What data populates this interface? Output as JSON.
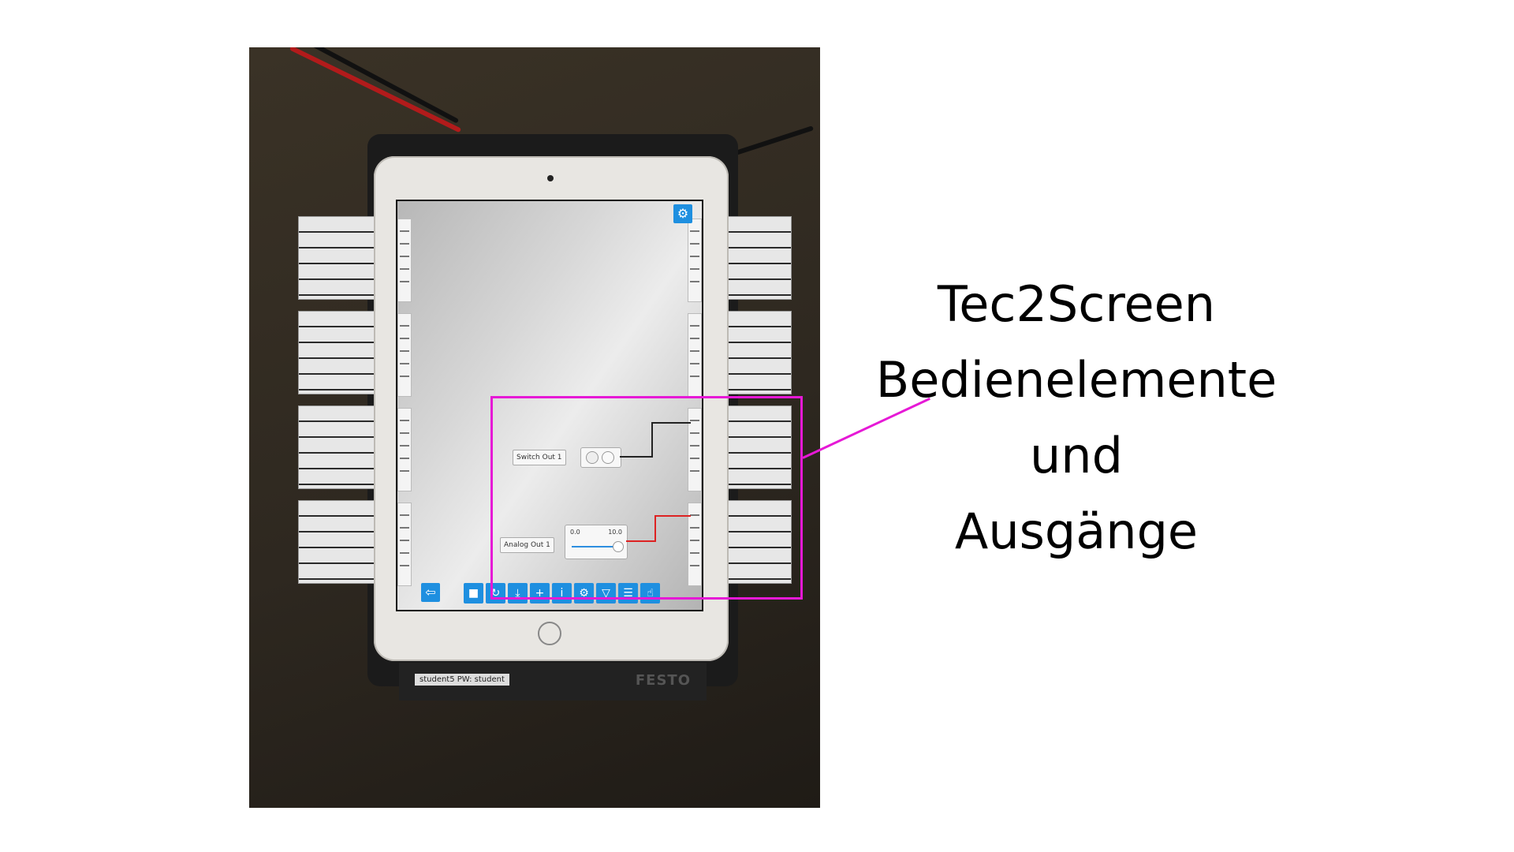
{
  "caption": {
    "line1": "Tec2Screen",
    "line2": "Bedienelemente",
    "line3": "und",
    "line4": "Ausgänge"
  },
  "highlight_color": "#e619d6",
  "app": {
    "controls": {
      "switch_label": "Switch Out 1",
      "analog_label": "Analog Out 1",
      "slider_min": "0.0",
      "slider_max": "10.0"
    },
    "toolbar_icons": [
      "stop-icon",
      "loop-icon",
      "signal-icon",
      "add-icon",
      "info-icon",
      "settings-icon",
      "filter-icon",
      "list-icon",
      "touch-icon"
    ],
    "top_icon": "settings-icon",
    "exit_icon": "exit-icon",
    "accent": "#1e8fe0"
  },
  "device": {
    "sticker": "student5 PW: student",
    "brand": "FESTO"
  }
}
